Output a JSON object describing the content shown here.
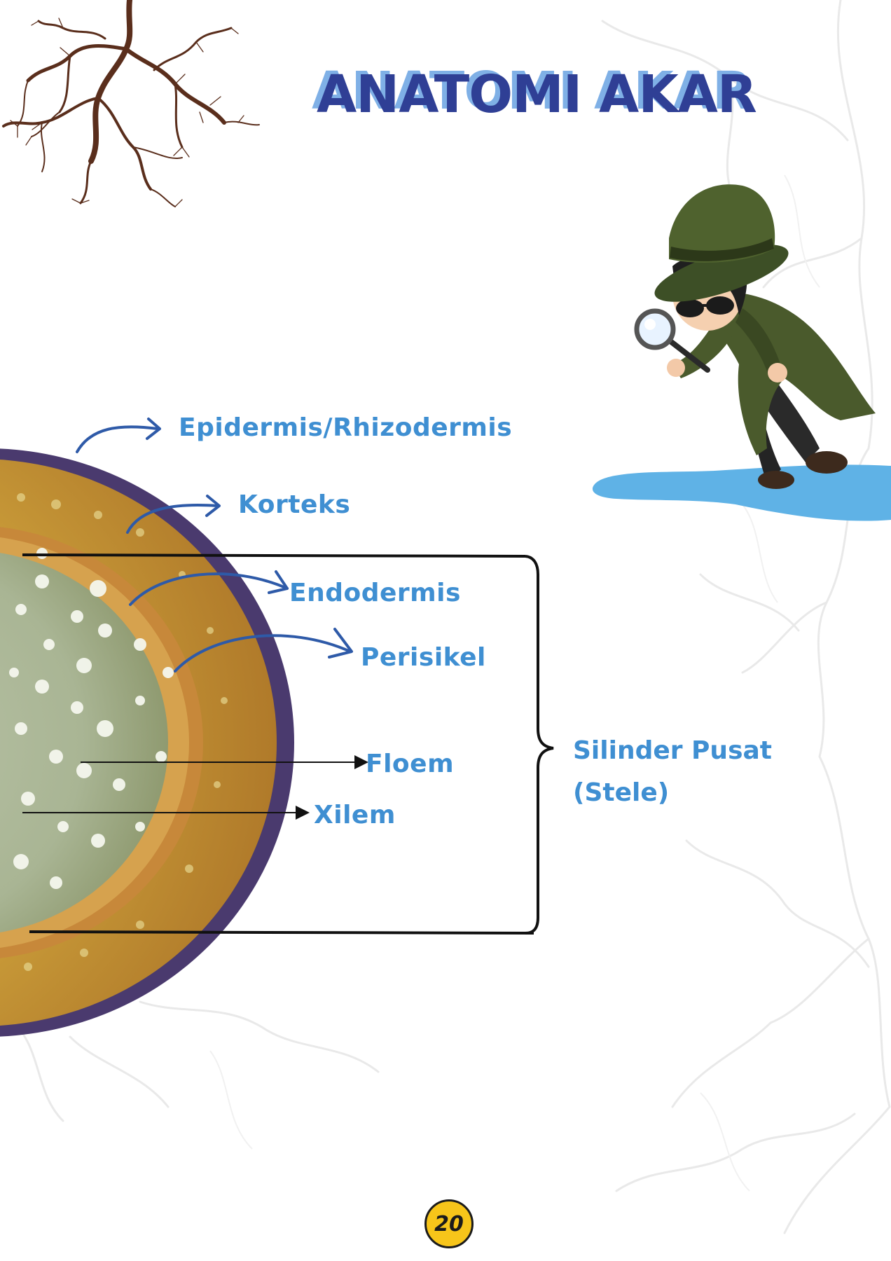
{
  "page": {
    "title": "ANATOMI AKAR",
    "page_number": "20"
  },
  "labels": {
    "epidermis": "Epidermis/Rhizodermis",
    "korteks": "Korteks",
    "endodermis": "Endodermis",
    "perisikel": "Perisikel",
    "floem": "Floem",
    "xilem": "Xilem",
    "stele_line1": "Silinder Pusat",
    "stele_line2": "(Stele)"
  },
  "colors": {
    "title": "#2f3f95",
    "title_shadow": "#7fb0e6",
    "label": "#3f8fd2",
    "arrow_curved": "#2e5aa8",
    "root_brown": "#5a2e1c",
    "badge": "#f7c51a",
    "puddle": "#5fb2e6"
  },
  "icons": {
    "root_decoration": "root-icon",
    "detective": "detective-icon",
    "magnifier": "magnifying-glass-icon"
  }
}
